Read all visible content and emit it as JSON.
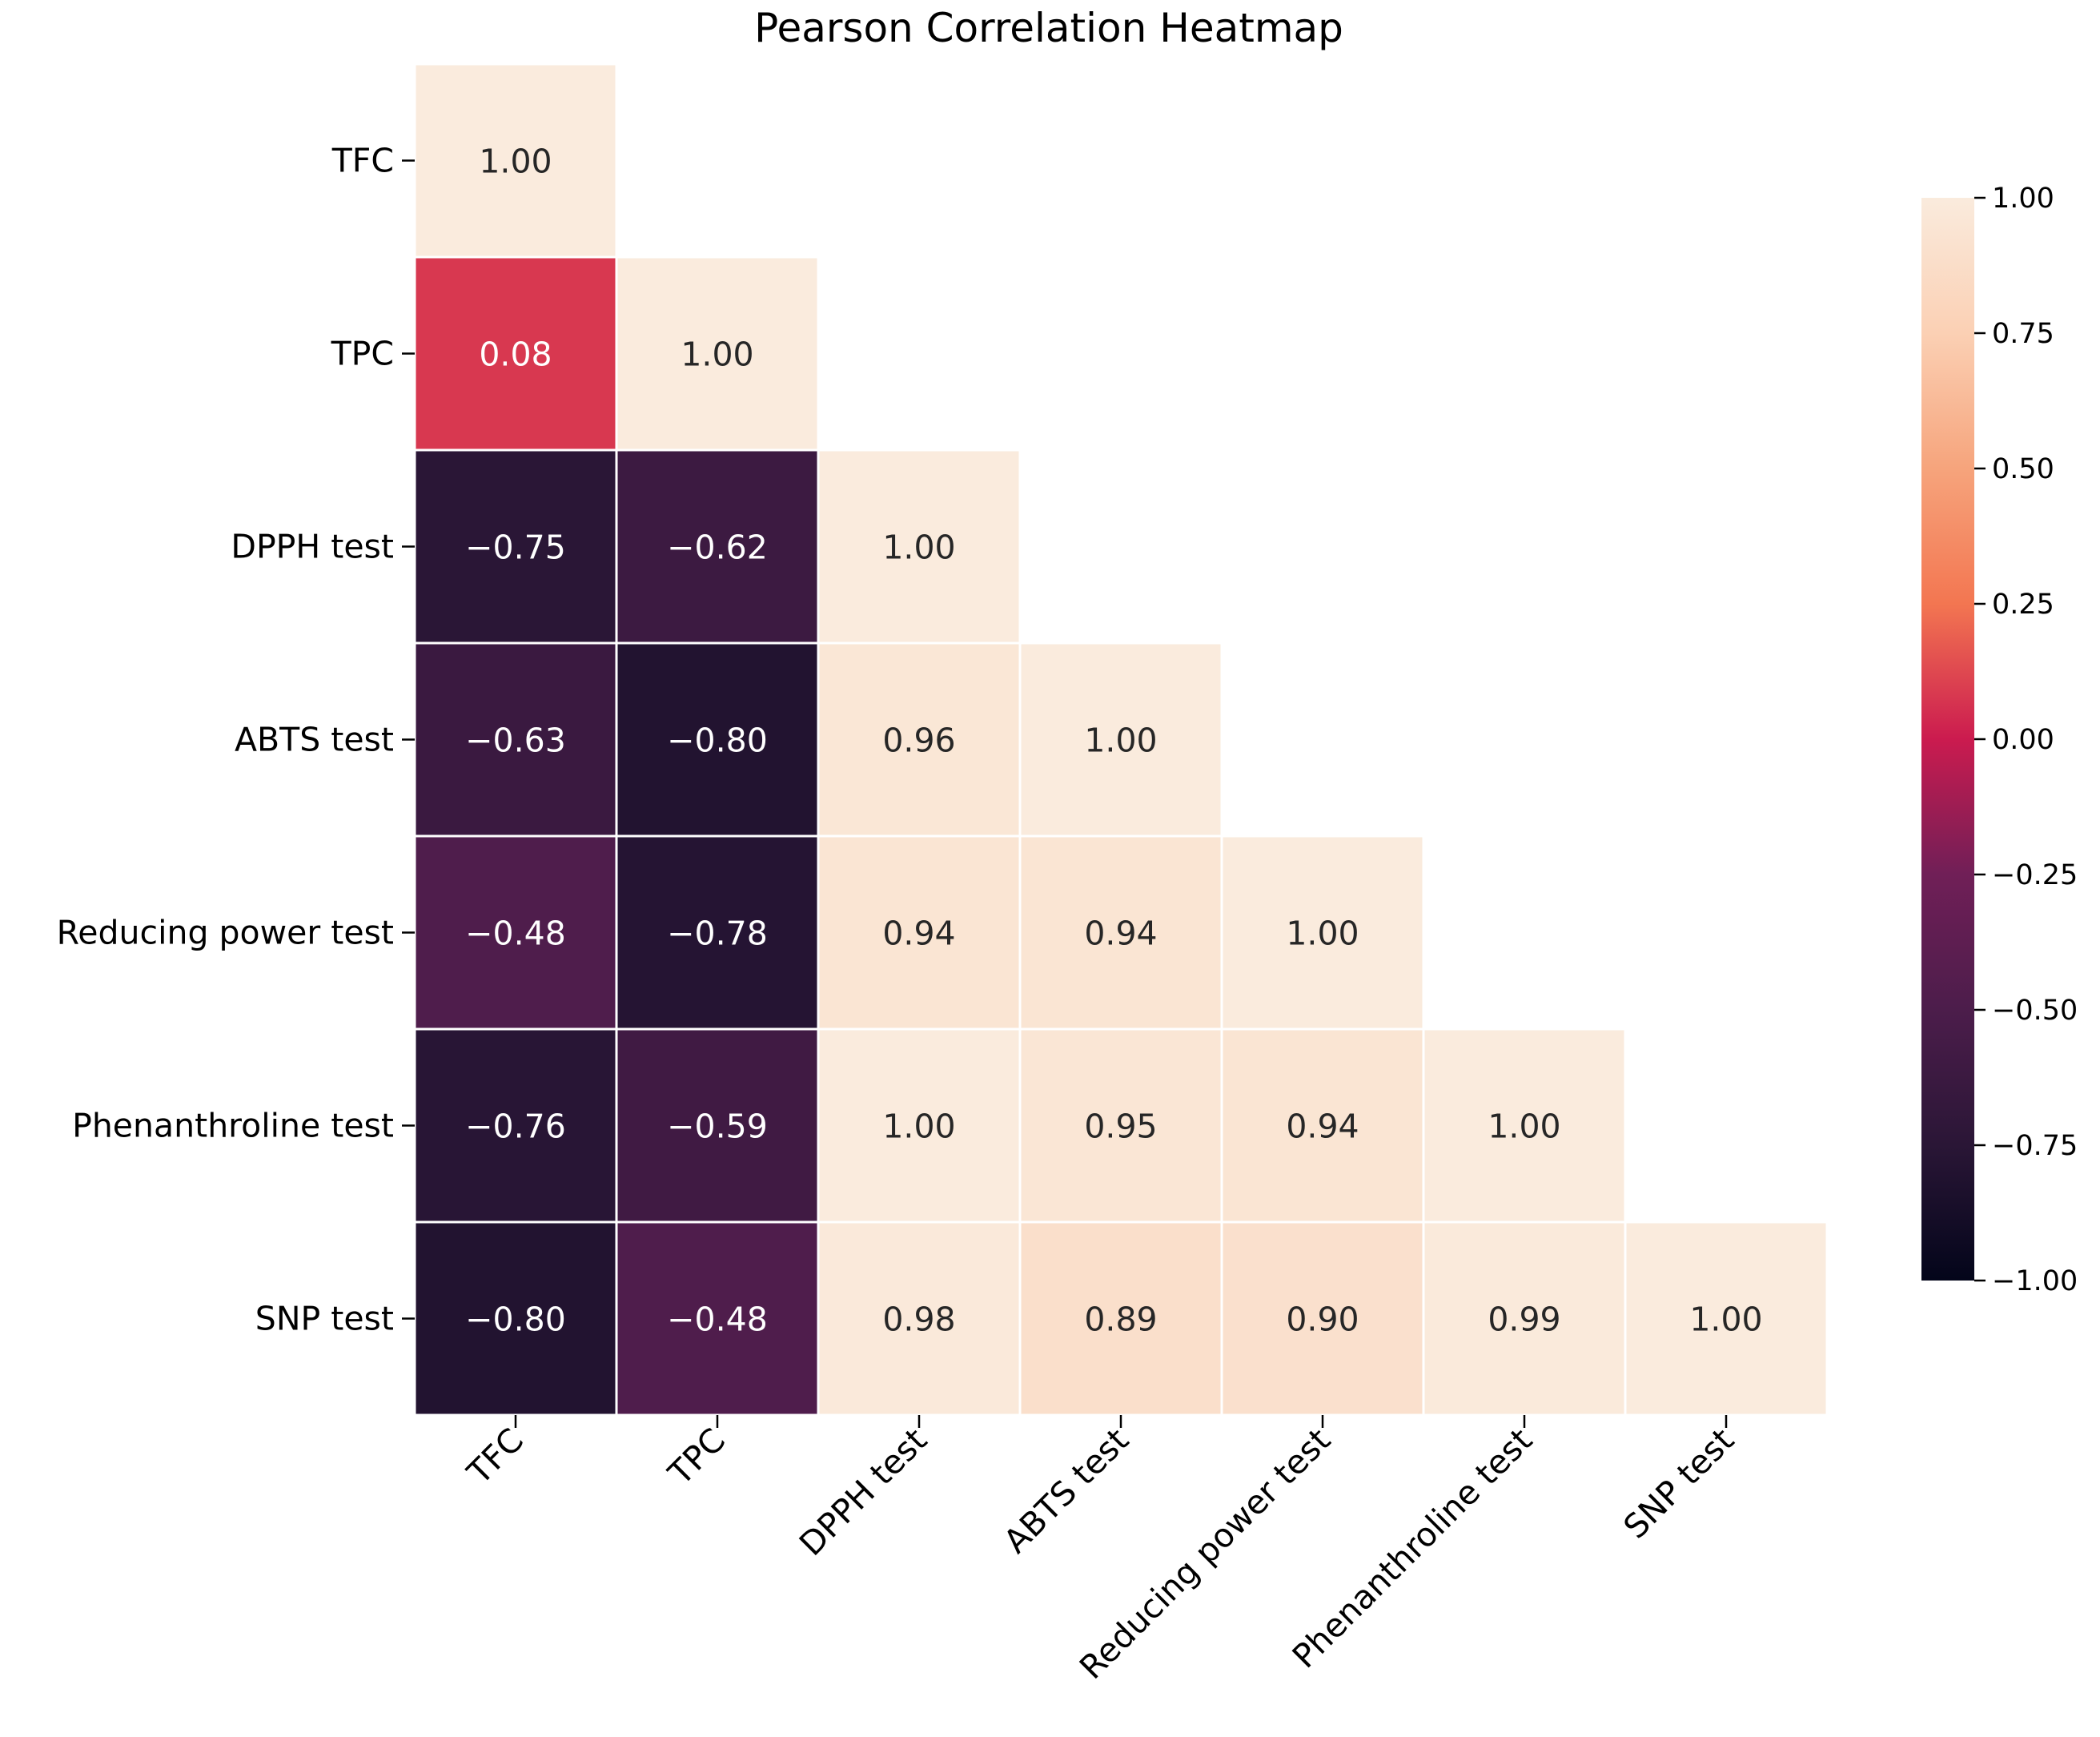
{
  "chart_data": {
    "type": "heatmap",
    "title": "Pearson Correlation Heatmap",
    "xlabel": "",
    "ylabel": "",
    "variables": [
      "TFC",
      "TPC",
      "DPPH test",
      "ABTS test",
      "Reducing power test",
      "Phenanthroline test",
      "SNP test"
    ],
    "mask": "upper-triangle",
    "matrix": [
      [
        1.0,
        null,
        null,
        null,
        null,
        null,
        null
      ],
      [
        0.08,
        1.0,
        null,
        null,
        null,
        null,
        null
      ],
      [
        -0.75,
        -0.62,
        1.0,
        null,
        null,
        null,
        null
      ],
      [
        -0.63,
        -0.8,
        0.96,
        1.0,
        null,
        null,
        null
      ],
      [
        -0.48,
        -0.78,
        0.94,
        0.94,
        1.0,
        null,
        null
      ],
      [
        -0.76,
        -0.59,
        1.0,
        0.95,
        0.94,
        1.0,
        null
      ],
      [
        -0.8,
        -0.48,
        0.98,
        0.89,
        0.9,
        0.99,
        1.0
      ]
    ],
    "value_format": "2 decimals",
    "colormap": "rocket",
    "colorbar": {
      "range": [
        -1,
        1
      ],
      "ticks": [
        1.0,
        0.75,
        0.5,
        0.25,
        0.0,
        -0.25,
        -0.5,
        -0.75,
        -1.0
      ],
      "tick_labels": [
        "1.00",
        "0.75",
        "0.50",
        "0.25",
        "0.00",
        "−0.25",
        "−0.50",
        "−0.75",
        "−1.00"
      ],
      "placement": "right"
    }
  }
}
